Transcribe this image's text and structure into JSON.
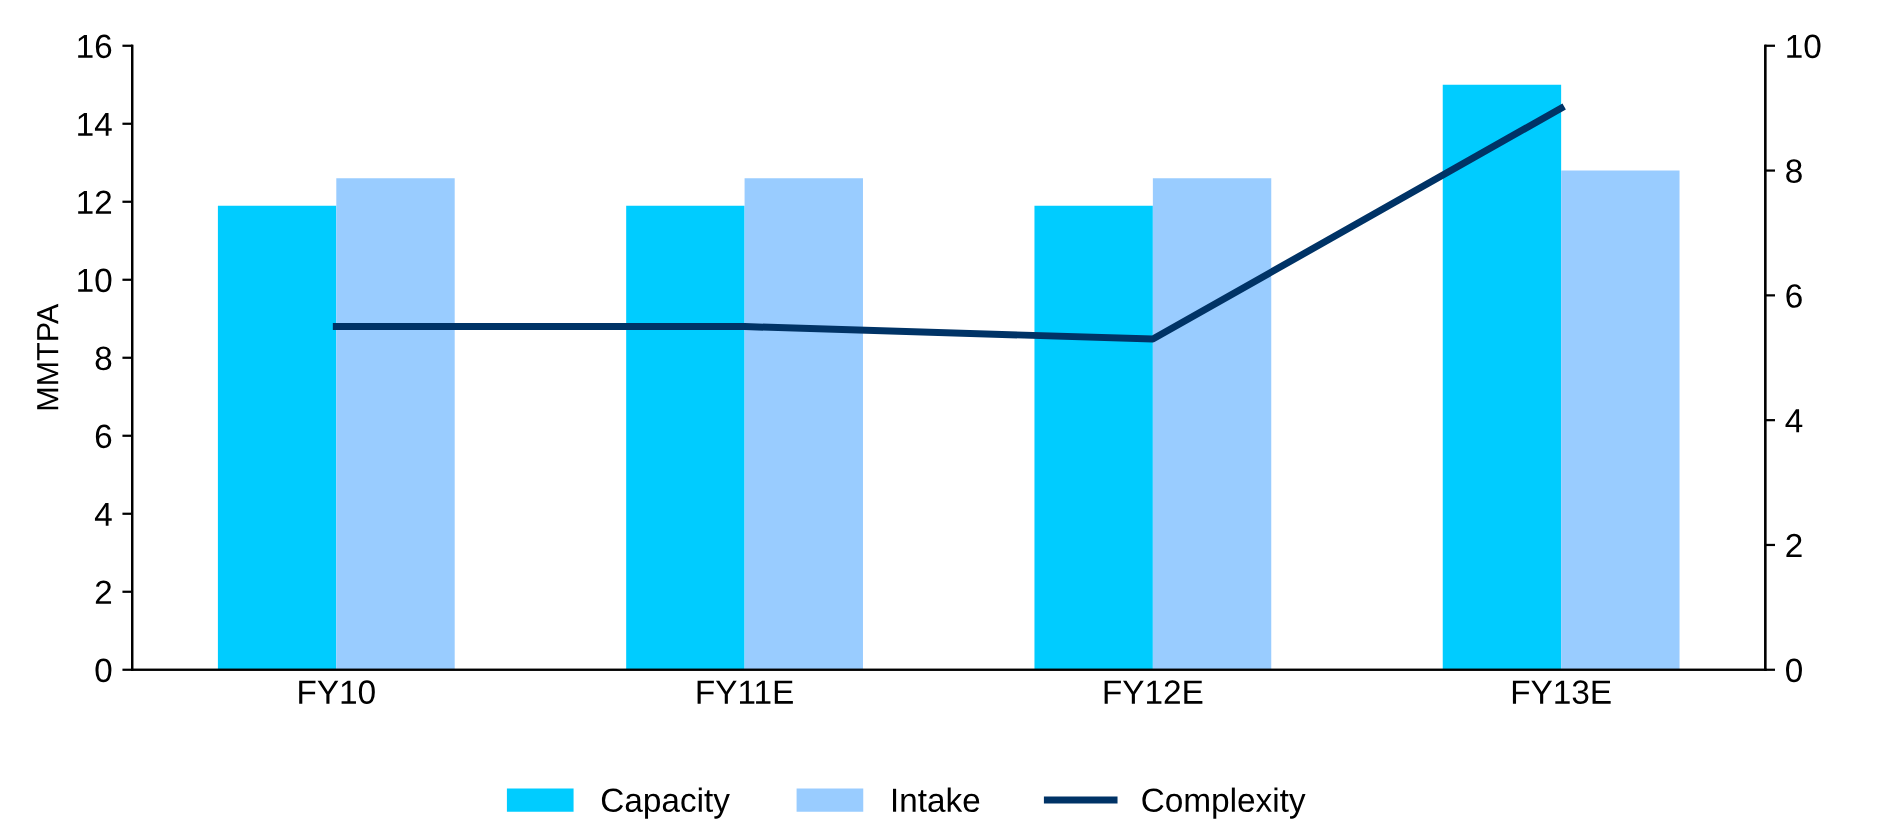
{
  "chart_data": {
    "type": "bar",
    "ylabel": "MMTPA",
    "categories": [
      "FY10",
      "FY11E",
      "FY12E",
      "FY13E"
    ],
    "series": [
      {
        "name": "Capacity",
        "color": "#00ccff",
        "values": [
          11.9,
          11.9,
          11.9,
          15.0
        ]
      },
      {
        "name": "Intake",
        "color": "#99ccff",
        "values": [
          12.6,
          12.6,
          12.6,
          12.8
        ]
      },
      {
        "name": "Complexity",
        "type": "line",
        "axis": "y2",
        "color": "#003366",
        "values": [
          5.5,
          5.5,
          5.3,
          9.0
        ]
      }
    ],
    "ylim": [
      0,
      16
    ],
    "yticks": [
      0,
      2,
      4,
      6,
      8,
      10,
      12,
      14,
      16
    ],
    "y2lim": [
      0,
      10
    ],
    "y2ticks": [
      0,
      2,
      4,
      6,
      8,
      10
    ],
    "grid": false,
    "legend": "bottom",
    "marker": "none",
    "line_style": "solid"
  }
}
